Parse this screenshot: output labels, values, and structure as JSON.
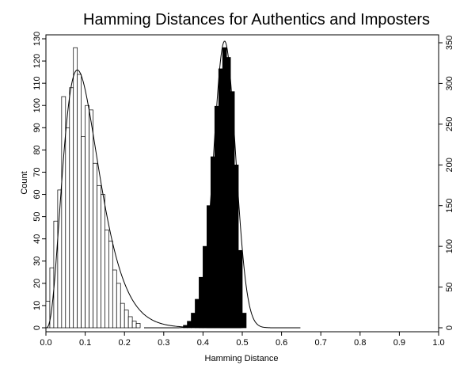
{
  "chart_data": {
    "type": "bar",
    "title": "Hamming Distances for Authentics and Imposters",
    "xlabel": "Hamming Distance",
    "ylabel": "Count",
    "xlim": [
      0.0,
      1.0
    ],
    "ylim_left": [
      0,
      130
    ],
    "ylim_right": [
      0,
      350
    ],
    "x_ticks": [
      "0.0",
      "0.1",
      "0.2",
      "0.3",
      "0.4",
      "0.5",
      "0.6",
      "0.7",
      "0.8",
      "0.9",
      "1.0"
    ],
    "y_ticks_left": [
      "0",
      "10",
      "20",
      "30",
      "40",
      "50",
      "60",
      "70",
      "80",
      "90",
      "100",
      "110",
      "120",
      "130"
    ],
    "y_ticks_right": [
      "0",
      "50",
      "100",
      "150",
      "200",
      "250",
      "300",
      "350"
    ],
    "bin_width": 0.01,
    "grid": false,
    "legend": "none",
    "series": [
      {
        "axis": "left",
        "fill": "#ffffff",
        "bin_starts": [
          0.0,
          0.01,
          0.02,
          0.03,
          0.04,
          0.05,
          0.06,
          0.07,
          0.08,
          0.09,
          0.1,
          0.11,
          0.12,
          0.13,
          0.14,
          0.15,
          0.16,
          0.17,
          0.18,
          0.19,
          0.2,
          0.21,
          0.22,
          0.23
        ],
        "values": [
          12,
          27,
          48,
          62,
          104,
          90,
          108,
          126,
          114,
          86,
          100,
          98,
          74,
          64,
          60,
          44,
          39,
          26,
          20,
          11,
          8,
          5,
          3,
          2
        ]
      },
      {
        "axis": "right",
        "fill": "#000000",
        "bin_starts": [
          0.35,
          0.36,
          0.37,
          0.38,
          0.39,
          0.4,
          0.41,
          0.42,
          0.43,
          0.44,
          0.45,
          0.46,
          0.47,
          0.48,
          0.49,
          0.5
        ],
        "values": [
          3,
          8,
          18,
          35,
          62,
          100,
          150,
          210,
          272,
          318,
          344,
          332,
          290,
          200,
          95,
          18
        ]
      }
    ],
    "fitted_curves": [
      {
        "axis": "left",
        "type": "gamma",
        "peak_x": 0.08,
        "peak_y": 116
      },
      {
        "axis": "right",
        "type": "normal",
        "mean": 0.455,
        "sd": 0.028,
        "peak_y": 352
      }
    ]
  }
}
